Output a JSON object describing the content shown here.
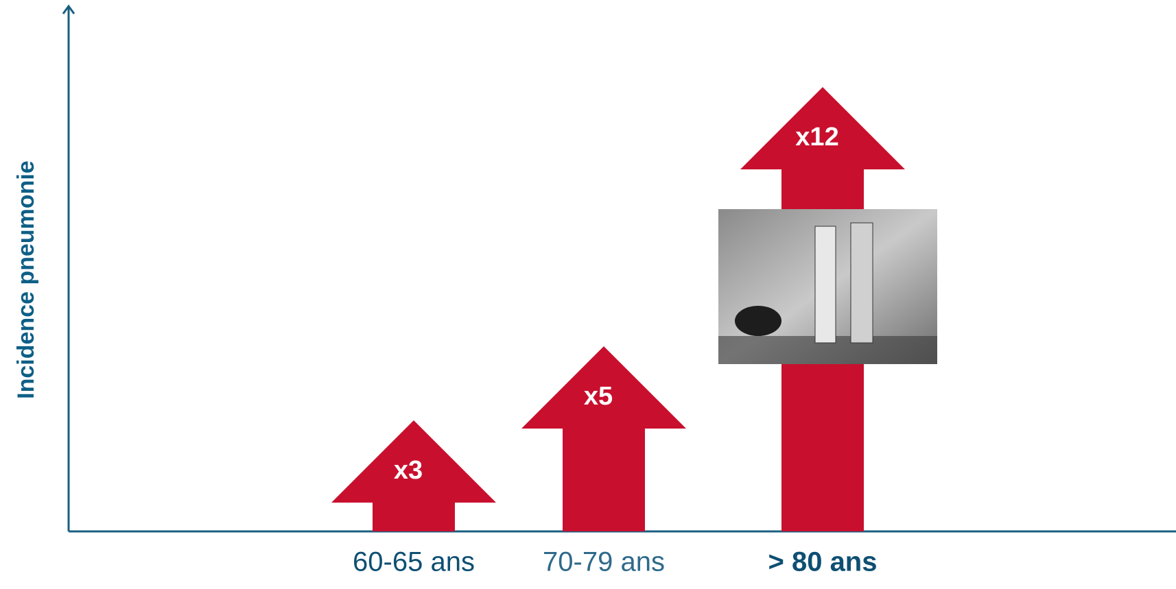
{
  "chart_data": {
    "type": "arrow-bar",
    "y_label": "Incidence pneumonie",
    "categories": [
      "60-65 ans",
      "70-79 ans",
      "> 80 ans"
    ],
    "values": [
      3,
      5,
      12
    ],
    "value_labels": [
      "x3",
      "x5",
      "x12"
    ],
    "color": "#c8102e",
    "ylim": [
      0,
      12.5
    ]
  }
}
